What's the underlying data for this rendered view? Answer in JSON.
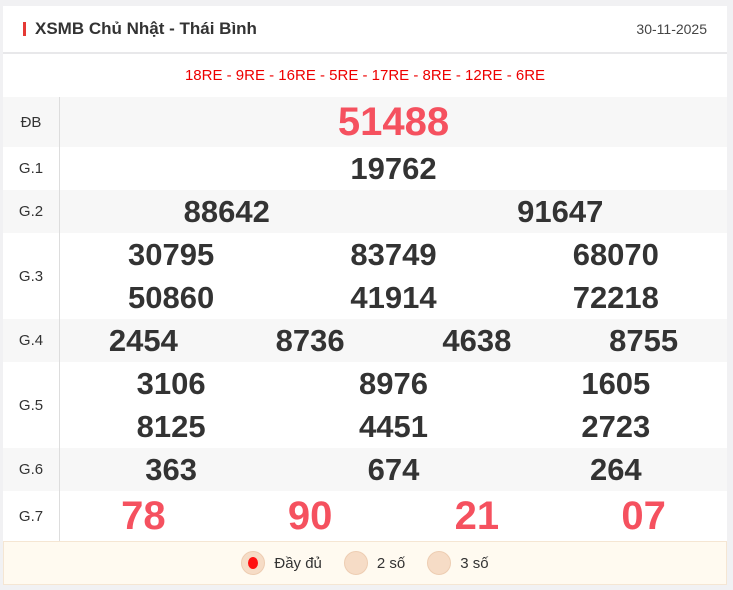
{
  "header": {
    "title": "XSMB Chủ Nhật - Thái Bình",
    "date": "30-11-2025"
  },
  "codes": "18RE - 9RE - 16RE - 5RE - 17RE - 8RE - 12RE - 6RE",
  "prizes": [
    {
      "label": "ĐB",
      "numbers": [
        "51488"
      ]
    },
    {
      "label": "G.1",
      "numbers": [
        "19762"
      ]
    },
    {
      "label": "G.2",
      "numbers": [
        "88642",
        "91647"
      ]
    },
    {
      "label": "G.3",
      "numbers": [
        "30795",
        "83749",
        "68070",
        "50860",
        "41914",
        "72218"
      ]
    },
    {
      "label": "G.4",
      "numbers": [
        "2454",
        "8736",
        "4638",
        "8755"
      ]
    },
    {
      "label": "G.5",
      "numbers": [
        "3106",
        "8976",
        "1605",
        "8125",
        "4451",
        "2723"
      ]
    },
    {
      "label": "G.6",
      "numbers": [
        "363",
        "674",
        "264"
      ]
    },
    {
      "label": "G.7",
      "numbers": [
        "78",
        "90",
        "21",
        "07"
      ]
    }
  ],
  "footer": {
    "options": [
      {
        "label": "Đầy đủ",
        "selected": true
      },
      {
        "label": "2 số",
        "selected": false
      },
      {
        "label": "3 số",
        "selected": false
      }
    ]
  },
  "colors": {
    "accent": "#e53935",
    "highlight_number": "#f5515f"
  }
}
